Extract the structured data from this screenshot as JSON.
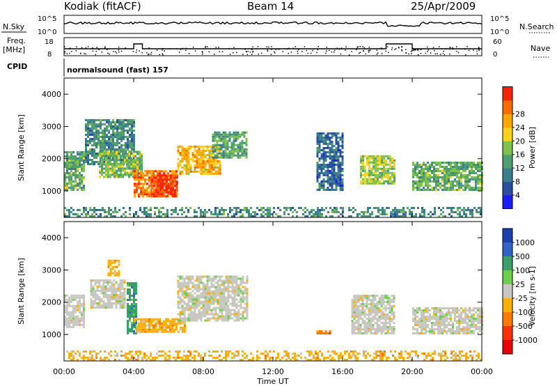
{
  "header": {
    "station": "Kodiak (fitACF)",
    "beam": "Beam 14",
    "date": "25/Apr/2009"
  },
  "labels": {
    "nsky": "N.Sky",
    "nsky_hi": "10^5",
    "nsky_lo": "10^0",
    "nsearch": "N.Search",
    "nsearch_hi": "10^5",
    "nsearch_lo": "10^0",
    "freq": "Freq.",
    "freq_unit": "[MHz]",
    "freq_hi": "18",
    "freq_lo": "8",
    "nave": "Nave",
    "nave_hi": "60",
    "nave_lo": "0",
    "cpid": "CPID",
    "program": "normalsound (fast) 157"
  },
  "chart_data": [
    {
      "type": "heatmap",
      "name": "power",
      "ylabel": "Slant Range [km]",
      "xlabel": "",
      "xlim": [
        0,
        24
      ],
      "ylim": [
        180,
        4500
      ],
      "yticks": [
        1000,
        2000,
        3000,
        4000
      ],
      "colorbar": {
        "label": "Power [dB]",
        "ticks": [
          "4",
          "8",
          "12",
          "16",
          "20",
          "24",
          "28"
        ],
        "colors": [
          "#1a1aff",
          "#2a4fa0",
          "#3b7f8f",
          "#4fa06e",
          "#7fc24a",
          "#ffd21a",
          "#ffa500",
          "#ff6a00",
          "#ff2200"
        ],
        "range": [
          0,
          30
        ]
      },
      "regions": [
        {
          "t": [
            0.0,
            1.2
          ],
          "r": [
            1000,
            2200
          ],
          "v": 13
        },
        {
          "t": [
            1.2,
            4.0
          ],
          "r": [
            1800,
            3200
          ],
          "v": 10
        },
        {
          "t": [
            2.0,
            4.5
          ],
          "r": [
            1400,
            2200
          ],
          "v": 14
        },
        {
          "t": [
            4.0,
            6.5
          ],
          "r": [
            800,
            1600
          ],
          "v": 24
        },
        {
          "t": [
            5.0,
            6.5
          ],
          "r": [
            800,
            1500
          ],
          "v": 27
        },
        {
          "t": [
            6.5,
            9.0
          ],
          "r": [
            1500,
            2400
          ],
          "v": 20
        },
        {
          "t": [
            8.5,
            10.5
          ],
          "r": [
            2000,
            2800
          ],
          "v": 12
        },
        {
          "t": [
            14.5,
            16.0
          ],
          "r": [
            1000,
            2800
          ],
          "v": 7
        },
        {
          "t": [
            17.0,
            19.0
          ],
          "r": [
            1200,
            2100
          ],
          "v": 16
        },
        {
          "t": [
            20.0,
            24.0
          ],
          "r": [
            1000,
            1900
          ],
          "v": 13
        },
        {
          "t": [
            0.0,
            24.0
          ],
          "r": [
            180,
            500
          ],
          "v": 10
        }
      ]
    },
    {
      "type": "heatmap",
      "name": "velocity",
      "ylabel": "Slant Range [km]",
      "xlabel": "Time UT",
      "xlim": [
        0,
        24
      ],
      "ylim": [
        180,
        4500
      ],
      "yticks": [
        1000,
        2000,
        3000,
        4000
      ],
      "xticks": [
        "00:00",
        "04:00",
        "08:00",
        "12:00",
        "16:00",
        "20:00",
        "00:00"
      ],
      "colorbar": {
        "label": "Velocity [m s-1]",
        "ticks": [
          "1000",
          "500",
          "100",
          "25",
          "-25",
          "-100",
          "-500",
          "-1000"
        ],
        "colors": [
          "#1a3fb0",
          "#2f63c8",
          "#3aa06a",
          "#6ad04a",
          "#c8c8c0",
          "#ffb000",
          "#ff7a00",
          "#ff3000",
          "#e80000"
        ]
      },
      "regions": [
        {
          "t": [
            0.0,
            1.2
          ],
          "r": [
            1200,
            2200
          ],
          "c": 4
        },
        {
          "t": [
            1.5,
            3.5
          ],
          "r": [
            1800,
            2700
          ],
          "c": 4
        },
        {
          "t": [
            2.5,
            3.2
          ],
          "r": [
            2800,
            3300
          ],
          "c": 5
        },
        {
          "t": [
            3.6,
            4.2
          ],
          "r": [
            1000,
            2600
          ],
          "c": 2
        },
        {
          "t": [
            4.0,
            7.0
          ],
          "r": [
            1050,
            1500
          ],
          "c": 5
        },
        {
          "t": [
            6.5,
            10.5
          ],
          "r": [
            1400,
            2800
          ],
          "c": 4
        },
        {
          "t": [
            14.5,
            15.3
          ],
          "r": [
            1000,
            1100
          ],
          "c": 6
        },
        {
          "t": [
            16.5,
            19.0
          ],
          "r": [
            1000,
            2200
          ],
          "c": 4
        },
        {
          "t": [
            20.0,
            24.0
          ],
          "r": [
            1000,
            1800
          ],
          "c": 4
        },
        {
          "t": [
            0.0,
            24.0
          ],
          "r": [
            180,
            450
          ],
          "c": 5
        }
      ]
    }
  ]
}
